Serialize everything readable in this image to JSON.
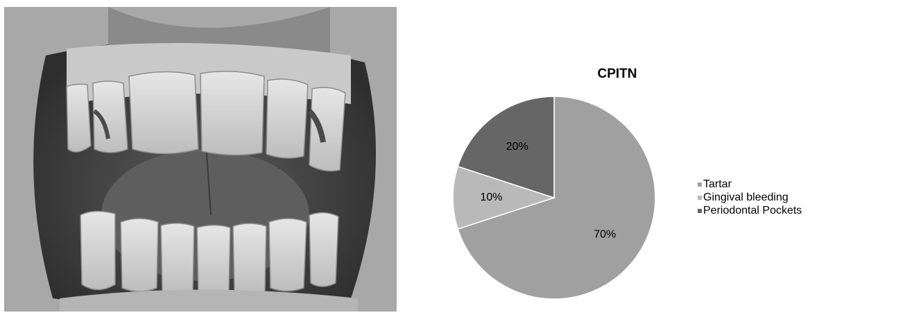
{
  "chart_data": {
    "type": "pie",
    "title": "CPITN",
    "categories": [
      "Tartar",
      "Gingival bleeding",
      "Periodontal Pockets"
    ],
    "values": [
      70,
      10,
      20
    ],
    "labels": [
      "70%",
      "10%",
      "20%"
    ],
    "colors": [
      "#a0a0a0",
      "#b9b9b9",
      "#666666"
    ],
    "start_angle_deg": 0,
    "direction": "clockwise",
    "legend": "right"
  },
  "colors": {
    "background": "#ffffff",
    "slice_border": "#ffffff"
  }
}
